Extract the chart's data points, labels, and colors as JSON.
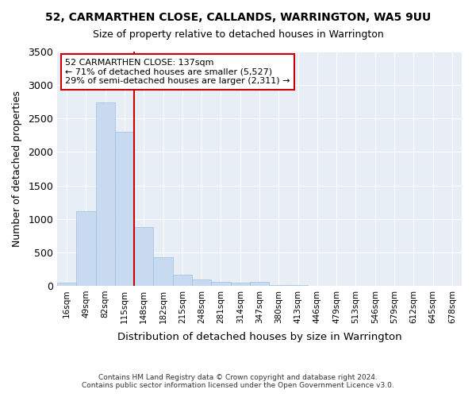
{
  "title": "52, CARMARTHEN CLOSE, CALLANDS, WARRINGTON, WA5 9UU",
  "subtitle": "Size of property relative to detached houses in Warrington",
  "xlabel": "Distribution of detached houses by size in Warrington",
  "ylabel": "Number of detached properties",
  "footer_line1": "Contains HM Land Registry data © Crown copyright and database right 2024.",
  "footer_line2": "Contains public sector information licensed under the Open Government Licence v3.0.",
  "bin_labels": [
    "16sqm",
    "49sqm",
    "82sqm",
    "115sqm",
    "148sqm",
    "182sqm",
    "215sqm",
    "248sqm",
    "281sqm",
    "314sqm",
    "347sqm",
    "380sqm",
    "413sqm",
    "446sqm",
    "479sqm",
    "513sqm",
    "546sqm",
    "579sqm",
    "612sqm",
    "645sqm",
    "678sqm"
  ],
  "bar_values": [
    50,
    1110,
    2740,
    2300,
    880,
    430,
    170,
    100,
    65,
    45,
    55,
    15,
    8,
    5,
    3,
    2,
    1,
    1,
    0,
    0,
    0
  ],
  "bar_color": "#c8daf0",
  "bar_edge_color": "#9bbedd",
  "property_label": "52 CARMARTHEN CLOSE: 137sqm",
  "annotation_line1": "← 71% of detached houses are smaller (5,527)",
  "annotation_line2": "29% of semi-detached houses are larger (2,311) →",
  "vline_color": "#cc0000",
  "annotation_box_color": "#ffffff",
  "annotation_box_edge_color": "#cc0000",
  "ylim": [
    0,
    3500
  ],
  "yticks": [
    0,
    500,
    1000,
    1500,
    2000,
    2500,
    3000,
    3500
  ],
  "background_color": "#ffffff",
  "plot_bg_color": "#e8eef5",
  "grid_color": "#ffffff"
}
